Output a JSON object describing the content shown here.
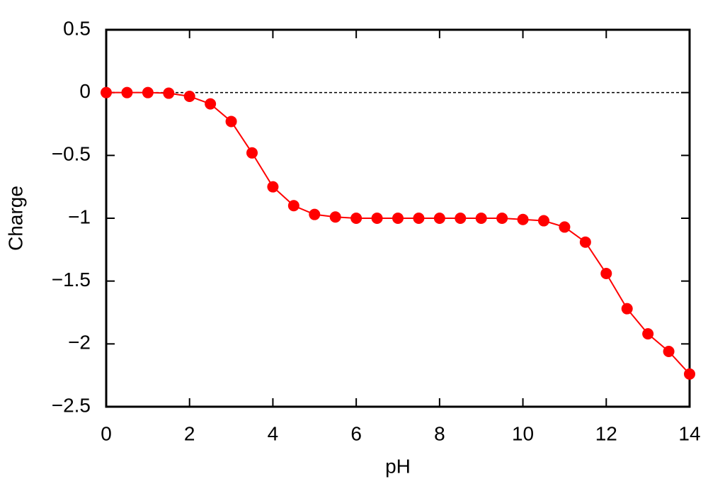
{
  "chart_data": {
    "type": "line",
    "xlabel": "pH",
    "ylabel": "Charge",
    "x": [
      0,
      0.5,
      1,
      1.5,
      2,
      2.5,
      3,
      3.5,
      4,
      4.5,
      5,
      5.5,
      6,
      6.5,
      7,
      7.5,
      8,
      8.5,
      9,
      9.5,
      10,
      10.5,
      11,
      11.5,
      12,
      12.5,
      13,
      13.5,
      14
    ],
    "values": [
      0,
      0,
      0,
      -0.005,
      -0.03,
      -0.09,
      -0.23,
      -0.48,
      -0.75,
      -0.9,
      -0.97,
      -0.99,
      -1,
      -1,
      -1,
      -1,
      -1,
      -1,
      -1,
      -1,
      -1.01,
      -1.02,
      -1.07,
      -1.19,
      -1.44,
      -1.72,
      -1.92,
      -2.06,
      -2.24
    ],
    "color": "#ff0000",
    "xlim": [
      0,
      14
    ],
    "xticks": [
      0,
      2,
      4,
      6,
      8,
      10,
      12,
      14
    ],
    "ylim": [
      -2.5,
      0.5
    ],
    "yticks": [
      {
        "value": -2.5,
        "label": "−2.5"
      },
      {
        "value": -2,
        "label": "−2"
      },
      {
        "value": -1.5,
        "label": "−1.5"
      },
      {
        "value": -1,
        "label": "−1"
      },
      {
        "value": -0.5,
        "label": "−0.5"
      },
      0,
      0.5
    ],
    "zero_line": true
  }
}
